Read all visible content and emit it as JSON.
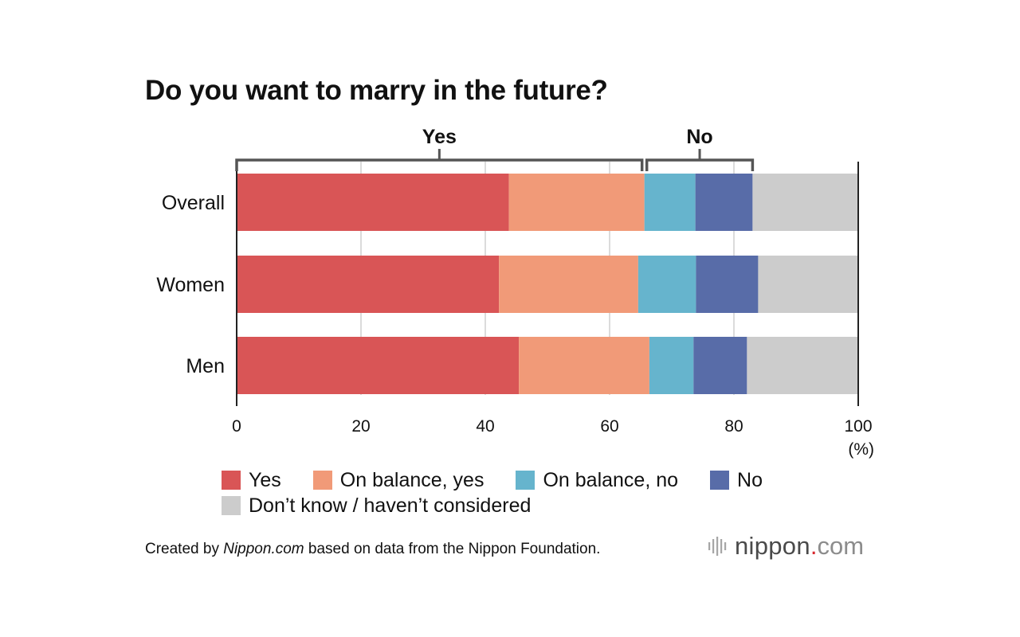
{
  "title": "Do you want to marry in the future?",
  "chart_data": {
    "type": "bar",
    "orientation": "horizontal",
    "stacked": true,
    "categories": [
      "Overall",
      "Women",
      "Men"
    ],
    "series": [
      {
        "name": "Yes",
        "color": "#d95556",
        "values": [
          43.8,
          42.2,
          45.4
        ]
      },
      {
        "name": "On balance, yes",
        "color": "#f19a78",
        "values": [
          21.8,
          22.4,
          21.0
        ]
      },
      {
        "name": "On balance, no",
        "color": "#66b4cd",
        "values": [
          8.2,
          9.3,
          7.1
        ]
      },
      {
        "name": "No",
        "color": "#586ca8",
        "values": [
          9.2,
          10.0,
          8.6
        ]
      },
      {
        "name": "Don’t know / haven’t considered",
        "color": "#cccccc",
        "values": [
          17.0,
          16.1,
          17.9
        ]
      }
    ],
    "xlim": [
      0,
      100
    ],
    "xticks": [
      "0",
      "20",
      "40",
      "60",
      "80",
      "100"
    ],
    "xunit": "(%)",
    "grid": true,
    "group_brackets": [
      {
        "label": "Yes",
        "from": 0,
        "to": 65.6
      },
      {
        "label": "No",
        "from": 65.6,
        "to": 83.0
      }
    ],
    "legend_position": "bottom"
  },
  "source": {
    "prefix": "Created by ",
    "emphasis": "Nippon.com",
    "suffix": " based on data from the Nippon Foundation."
  },
  "logo": {
    "name": "nippon",
    "dot": ".",
    "tld": "com"
  }
}
